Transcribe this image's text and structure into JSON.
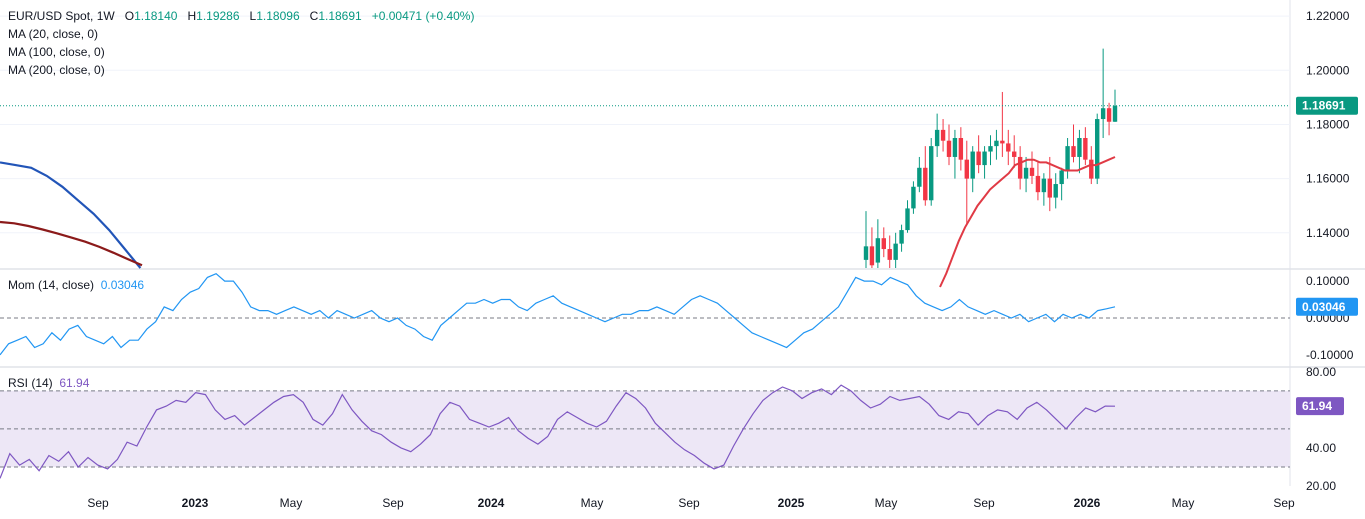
{
  "header": {
    "symbol": "EUR/USD Spot, 1W",
    "o_label": "O",
    "o_value": "1.18140",
    "h_label": "H",
    "h_value": "1.19286",
    "l_label": "L",
    "l_value": "1.18096",
    "c_label": "C",
    "c_value": "1.18691",
    "change": "+0.00471 (+0.40%)",
    "ma_lines": [
      "MA (20, close, 0)",
      "MA (100, close, 0)",
      "MA (200, close, 0)"
    ]
  },
  "mom": {
    "label": "Mom (14, close)",
    "value": "0.03046"
  },
  "rsi": {
    "label": "RSI (14)",
    "value": "61.94"
  },
  "colors": {
    "up": "#089981",
    "down": "#f23645",
    "ma20": "#e03a45",
    "ma100": "#2255b8",
    "ma200": "#8b1a1a",
    "mom": "#2196f3",
    "rsi": "#7e57c2",
    "rsi_band": "#ede7f6"
  },
  "chart_data": [
    {
      "type": "candlestick",
      "name": "EUR/USD Spot",
      "ylim": [
        1.127,
        1.223
      ],
      "y_ticks": [
        "1.22000",
        "1.20000",
        "1.18000",
        "1.16000",
        "1.14000"
      ],
      "last_price_label": "1.18691",
      "last_price": 1.18691,
      "x_ticks": [
        {
          "label": "Sep",
          "bold": false
        },
        {
          "label": "2023",
          "bold": true
        },
        {
          "label": "May",
          "bold": false
        },
        {
          "label": "Sep",
          "bold": false
        },
        {
          "label": "2024",
          "bold": true
        },
        {
          "label": "May",
          "bold": false
        },
        {
          "label": "Sep",
          "bold": false
        },
        {
          "label": "2025",
          "bold": true
        },
        {
          "label": "May",
          "bold": false
        },
        {
          "label": "Sep",
          "bold": false
        },
        {
          "label": "2026",
          "bold": true
        },
        {
          "label": "May",
          "bold": false
        },
        {
          "label": "Sep",
          "bold": false
        }
      ],
      "candles": [
        [
          1.13,
          1.148,
          1.127,
          1.135
        ],
        [
          1.135,
          1.142,
          1.127,
          1.128
        ],
        [
          1.129,
          1.145,
          1.127,
          1.138
        ],
        [
          1.138,
          1.142,
          1.131,
          1.134
        ],
        [
          1.134,
          1.139,
          1.127,
          1.13
        ],
        [
          1.13,
          1.14,
          1.127,
          1.136
        ],
        [
          1.136,
          1.143,
          1.133,
          1.141
        ],
        [
          1.141,
          1.152,
          1.14,
          1.149
        ],
        [
          1.149,
          1.159,
          1.147,
          1.157
        ],
        [
          1.157,
          1.168,
          1.155,
          1.164
        ],
        [
          1.164,
          1.172,
          1.15,
          1.152
        ],
        [
          1.152,
          1.175,
          1.15,
          1.172
        ],
        [
          1.172,
          1.184,
          1.168,
          1.178
        ],
        [
          1.178,
          1.182,
          1.17,
          1.174
        ],
        [
          1.174,
          1.18,
          1.165,
          1.168
        ],
        [
          1.168,
          1.178,
          1.16,
          1.175
        ],
        [
          1.175,
          1.179,
          1.163,
          1.167
        ],
        [
          1.167,
          1.174,
          1.143,
          1.16
        ],
        [
          1.16,
          1.172,
          1.155,
          1.17
        ],
        [
          1.17,
          1.176,
          1.162,
          1.165
        ],
        [
          1.165,
          1.172,
          1.16,
          1.17
        ],
        [
          1.17,
          1.176,
          1.165,
          1.172
        ],
        [
          1.172,
          1.178,
          1.167,
          1.174
        ],
        [
          1.174,
          1.192,
          1.168,
          1.173
        ],
        [
          1.173,
          1.178,
          1.165,
          1.17
        ],
        [
          1.17,
          1.176,
          1.164,
          1.168
        ],
        [
          1.168,
          1.172,
          1.156,
          1.16
        ],
        [
          1.16,
          1.168,
          1.155,
          1.164
        ],
        [
          1.164,
          1.17,
          1.158,
          1.161
        ],
        [
          1.161,
          1.166,
          1.152,
          1.155
        ],
        [
          1.155,
          1.162,
          1.15,
          1.16
        ],
        [
          1.16,
          1.168,
          1.148,
          1.153
        ],
        [
          1.153,
          1.162,
          1.149,
          1.158
        ],
        [
          1.158,
          1.164,
          1.152,
          1.163
        ],
        [
          1.163,
          1.175,
          1.16,
          1.172
        ],
        [
          1.172,
          1.18,
          1.166,
          1.168
        ],
        [
          1.168,
          1.178,
          1.162,
          1.175
        ],
        [
          1.175,
          1.179,
          1.165,
          1.167
        ],
        [
          1.167,
          1.172,
          1.158,
          1.16
        ],
        [
          1.16,
          1.184,
          1.158,
          1.182
        ],
        [
          1.182,
          1.208,
          1.175,
          1.186
        ],
        [
          1.186,
          1.188,
          1.176,
          1.181
        ],
        [
          1.181,
          1.19286,
          1.18096,
          1.18691
        ]
      ],
      "ma20": [
        1.12,
        1.125,
        1.131,
        1.137,
        1.142,
        1.146,
        1.15,
        1.153,
        1.156,
        1.158,
        1.16,
        1.162,
        1.165,
        1.166,
        1.167,
        1.167,
        1.166,
        1.166,
        1.165,
        1.164,
        1.163,
        1.163,
        1.163,
        1.164,
        1.165,
        1.165,
        1.166,
        1.167,
        1.168
      ],
      "ma100": [
        1.166,
        1.165,
        1.164,
        1.161,
        1.157,
        1.152,
        1.147,
        1.141,
        1.134,
        1.127
      ],
      "ma200": [
        1.144,
        1.1435,
        1.1425,
        1.1412,
        1.1398,
        1.1383,
        1.1367,
        1.1348,
        1.1326,
        1.1303,
        1.128
      ]
    },
    {
      "type": "line",
      "name": "Mom (14, close)",
      "ylim": [
        -0.13,
        0.13
      ],
      "y_ticks": [
        "0.10000",
        "0.00000",
        "-0.10000"
      ],
      "last_value_label": "0.03046",
      "zero_line": 0,
      "values": [
        -0.1,
        -0.07,
        -0.06,
        -0.05,
        -0.08,
        -0.07,
        -0.04,
        -0.06,
        -0.03,
        -0.02,
        -0.05,
        -0.06,
        -0.07,
        -0.05,
        -0.08,
        -0.06,
        -0.06,
        -0.03,
        -0.01,
        0.03,
        0.02,
        0.05,
        0.07,
        0.08,
        0.11,
        0.12,
        0.1,
        0.1,
        0.07,
        0.03,
        0.02,
        0.02,
        0.01,
        0.02,
        0.03,
        0.02,
        0.01,
        0.02,
        0.0,
        0.02,
        0.01,
        0.0,
        0.01,
        0.02,
        0.0,
        -0.01,
        0.0,
        -0.02,
        -0.03,
        -0.05,
        -0.06,
        -0.02,
        0.0,
        0.02,
        0.04,
        0.04,
        0.05,
        0.04,
        0.05,
        0.05,
        0.03,
        0.02,
        0.04,
        0.05,
        0.06,
        0.04,
        0.03,
        0.02,
        0.01,
        0.0,
        -0.01,
        0.0,
        0.01,
        0.01,
        0.02,
        0.02,
        0.03,
        0.02,
        0.01,
        0.03,
        0.05,
        0.06,
        0.05,
        0.04,
        0.02,
        0.0,
        -0.02,
        -0.04,
        -0.05,
        -0.06,
        -0.07,
        -0.08,
        -0.06,
        -0.04,
        -0.03,
        -0.01,
        0.01,
        0.03,
        0.07,
        0.11,
        0.1,
        0.1,
        0.09,
        0.11,
        0.1,
        0.09,
        0.06,
        0.04,
        0.03,
        0.02,
        0.03,
        0.05,
        0.03,
        0.02,
        0.01,
        0.02,
        0.01,
        0.0,
        0.01,
        -0.01,
        0.0,
        0.01,
        -0.01,
        0.01,
        0.0,
        0.01,
        0.0,
        0.02,
        0.025,
        0.03046
      ]
    },
    {
      "type": "line",
      "name": "RSI (14)",
      "ylim": [
        20,
        82
      ],
      "y_ticks": [
        "80.00",
        "40.00",
        "20.00"
      ],
      "last_value_label": "61.94",
      "bands": [
        70,
        50,
        30
      ],
      "values": [
        24,
        37,
        31,
        34,
        28,
        36,
        33,
        38,
        30,
        35,
        31,
        29,
        34,
        43,
        41,
        51,
        60,
        62,
        65,
        64,
        69,
        68,
        60,
        55,
        57,
        52,
        56,
        60,
        64,
        67,
        68,
        64,
        55,
        52,
        58,
        68,
        60,
        54,
        49,
        47,
        43,
        40,
        38,
        42,
        47,
        58,
        64,
        62,
        55,
        53,
        51,
        53,
        56,
        49,
        45,
        42,
        46,
        55,
        59,
        56,
        53,
        51,
        54,
        62,
        69,
        66,
        61,
        53,
        48,
        43,
        39,
        36,
        32,
        29,
        31,
        41,
        50,
        58,
        65,
        69,
        72,
        70,
        66,
        69,
        71,
        68,
        73,
        70,
        65,
        61,
        63,
        67,
        65,
        66,
        67,
        63,
        57,
        55,
        59,
        58,
        52,
        57,
        60,
        59,
        55,
        61,
        64,
        60,
        55,
        50,
        56,
        61,
        59,
        62,
        61.94
      ]
    }
  ]
}
